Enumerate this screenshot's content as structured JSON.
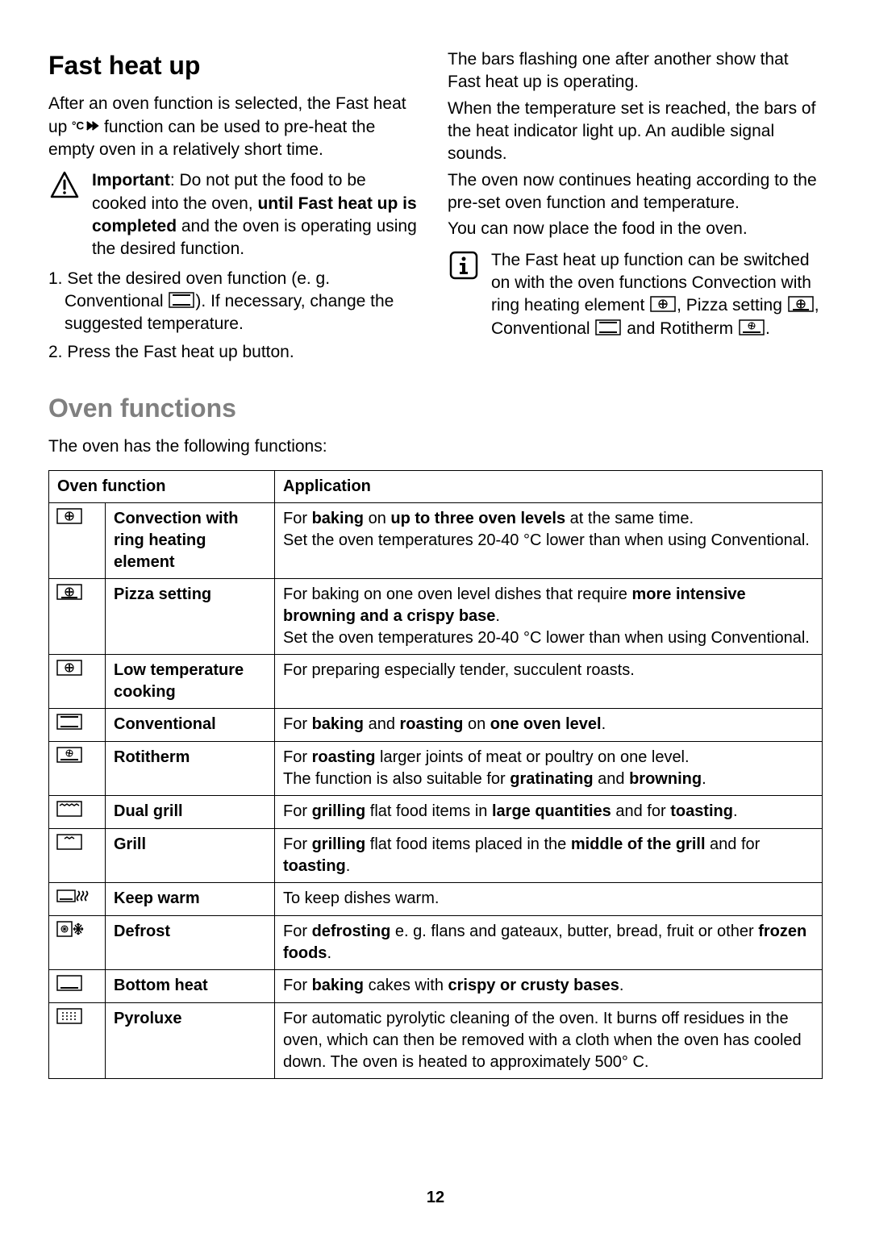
{
  "section1": {
    "title": "Fast heat up",
    "intro_a": "After an oven function is selected, the Fast heat up ",
    "intro_b": " function can be used to pre-heat the empty oven in a relatively short time.",
    "important_label": "Important",
    "important_a": ": Do not put the food to be cooked into the oven, ",
    "important_b": "until Fast heat up is completed",
    "important_c": " and the oven is operating using the desired function.",
    "step1_a": "1. Set the desired oven function (e. g. Conventional ",
    "step1_b": "). If necessary, change the suggested temperature.",
    "step2": "2. Press the Fast heat up button.",
    "right_p1": "The bars flashing one after another show that Fast heat up is operating.",
    "right_p2": "When the temperature set is reached, the bars of the heat indicator light up. An audible signal sounds.",
    "right_p3": "The oven now continues heating according to the pre-set oven function and temperature.",
    "right_p4": "You can now place the food in the oven.",
    "info_a": "The Fast heat up function can be switched on with the oven functions Convection with ring heating element ",
    "info_b": ", Pizza setting ",
    "info_c": ", Conventional ",
    "info_d": " and Rotitherm ",
    "info_e": "."
  },
  "section2": {
    "title": "Oven functions",
    "intro": "The oven has the following functions:",
    "header_func": "Oven function",
    "header_app": "Application",
    "rows": [
      {
        "icon": "fan",
        "name": "Convection with ring heating element",
        "app": "For <b>baking</b> on <b>up to three oven levels</b> at the same time.<br>Set the oven temperatures 20-40 °C lower than when using Conventional."
      },
      {
        "icon": "pizza",
        "name": "Pizza setting",
        "app": "For baking on one oven level dishes that require <b>more intensive browning and a crispy base</b>.<br>Set the oven temperatures 20-40 °C lower than when using Conventional."
      },
      {
        "icon": "fan",
        "name": "Low temperature cooking",
        "app": "For preparing especially tender, succulent roasts."
      },
      {
        "icon": "conv",
        "name": "Conventional",
        "app": "For <b>baking</b> and <b>roasting</b> on <b>one oven level</b>."
      },
      {
        "icon": "roti",
        "name": "Rotitherm",
        "app": "For <b>roasting</b> larger joints of meat or poultry on one level.<br>The function is also suitable for <b>gratinating</b> and <b>browning</b>."
      },
      {
        "icon": "dgrill",
        "name": "Dual grill",
        "app": "For <b>grilling</b> flat food items in <b>large quantities</b> and for <b>toasting</b>."
      },
      {
        "icon": "grill",
        "name": "Grill",
        "app": "For <b>grilling</b> flat food items placed in the <b>middle of the grill</b> and for <b>toasting</b>."
      },
      {
        "icon": "keepwarm",
        "name": "Keep warm",
        "app": "To keep dishes warm."
      },
      {
        "icon": "defrost",
        "name": "Defrost",
        "app": "For <b>defrosting</b> e. g. flans and gateaux, butter, bread, fruit or other <b>frozen foods</b>."
      },
      {
        "icon": "bottom",
        "name": "Bottom heat",
        "app": "For <b>baking</b> cakes with <b>crispy or crusty bases</b>."
      },
      {
        "icon": "pyro",
        "name": "Pyroluxe",
        "app": "For automatic pyrolytic cleaning of the oven. It burns off residues in the oven, which can then be removed with a cloth when the oven has cooled down. The oven is heated to approximately 500° C."
      }
    ]
  },
  "page_number": "12",
  "icons": {
    "warn": "warning-triangle",
    "info": "info-box",
    "fastheat": "c-arrows",
    "fan": "fan-circle",
    "pizza": "fan-underline",
    "conv": "top-bottom-bars",
    "roti": "fan-over-bar",
    "dgrill": "zigzag-wide",
    "grill": "zigzag-narrow",
    "keepwarm": "box-waves",
    "defrost": "fan-snowflake",
    "bottom": "bottom-bar",
    "pyro": "dot-grid"
  },
  "colors": {
    "text": "#000000",
    "bg": "#ffffff",
    "heading_grey": "#808080",
    "border": "#000000"
  },
  "typography": {
    "body_fontsize_pt": 16,
    "h1_fontsize_pt": 24,
    "font_family": "Arial"
  }
}
